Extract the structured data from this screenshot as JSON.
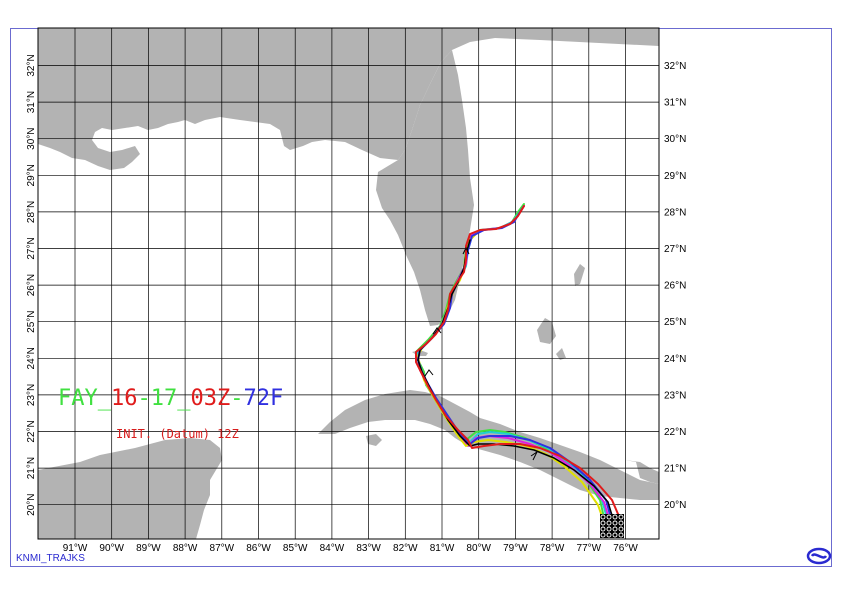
{
  "map": {
    "lat_labels_right": [
      "32°N",
      "31°N",
      "30°N",
      "29°N",
      "28°N",
      "27°N",
      "26°N",
      "25°N",
      "24°N",
      "23°N",
      "22°N",
      "21°N",
      "20°N"
    ],
    "lat_labels_left": [
      "32°N",
      "31°N",
      "30°N",
      "29°N",
      "28°N",
      "27°N",
      "26°N",
      "25°N",
      "24°N",
      "23°N",
      "22°N",
      "21°N",
      "20°N"
    ],
    "lon_labels": [
      "91°W",
      "90°W",
      "89°W",
      "88°W",
      "87°W",
      "86°W",
      "85°W",
      "84°W",
      "83°W",
      "82°W",
      "81°W",
      "80°W",
      "79°W",
      "78°W",
      "77°W",
      "76°W"
    ],
    "land_color": "#b3b3b3",
    "grid_color": "#000000",
    "colors": {
      "red": "#e01b1b",
      "green": "#40e040",
      "blue": "#3030e0",
      "cyan": "#20d0d0",
      "magenta": "#e020e0",
      "yellow": "#e0e000",
      "black": "#000000"
    }
  },
  "title": {
    "part1": "FAY_",
    "part2": "16",
    "part3": "-17_",
    "part4": "03Z",
    "part5": "-",
    "part6": "72F"
  },
  "subtitle": "INIT. (Datum) 12Z",
  "footer": "KNMI_TRAJKS"
}
